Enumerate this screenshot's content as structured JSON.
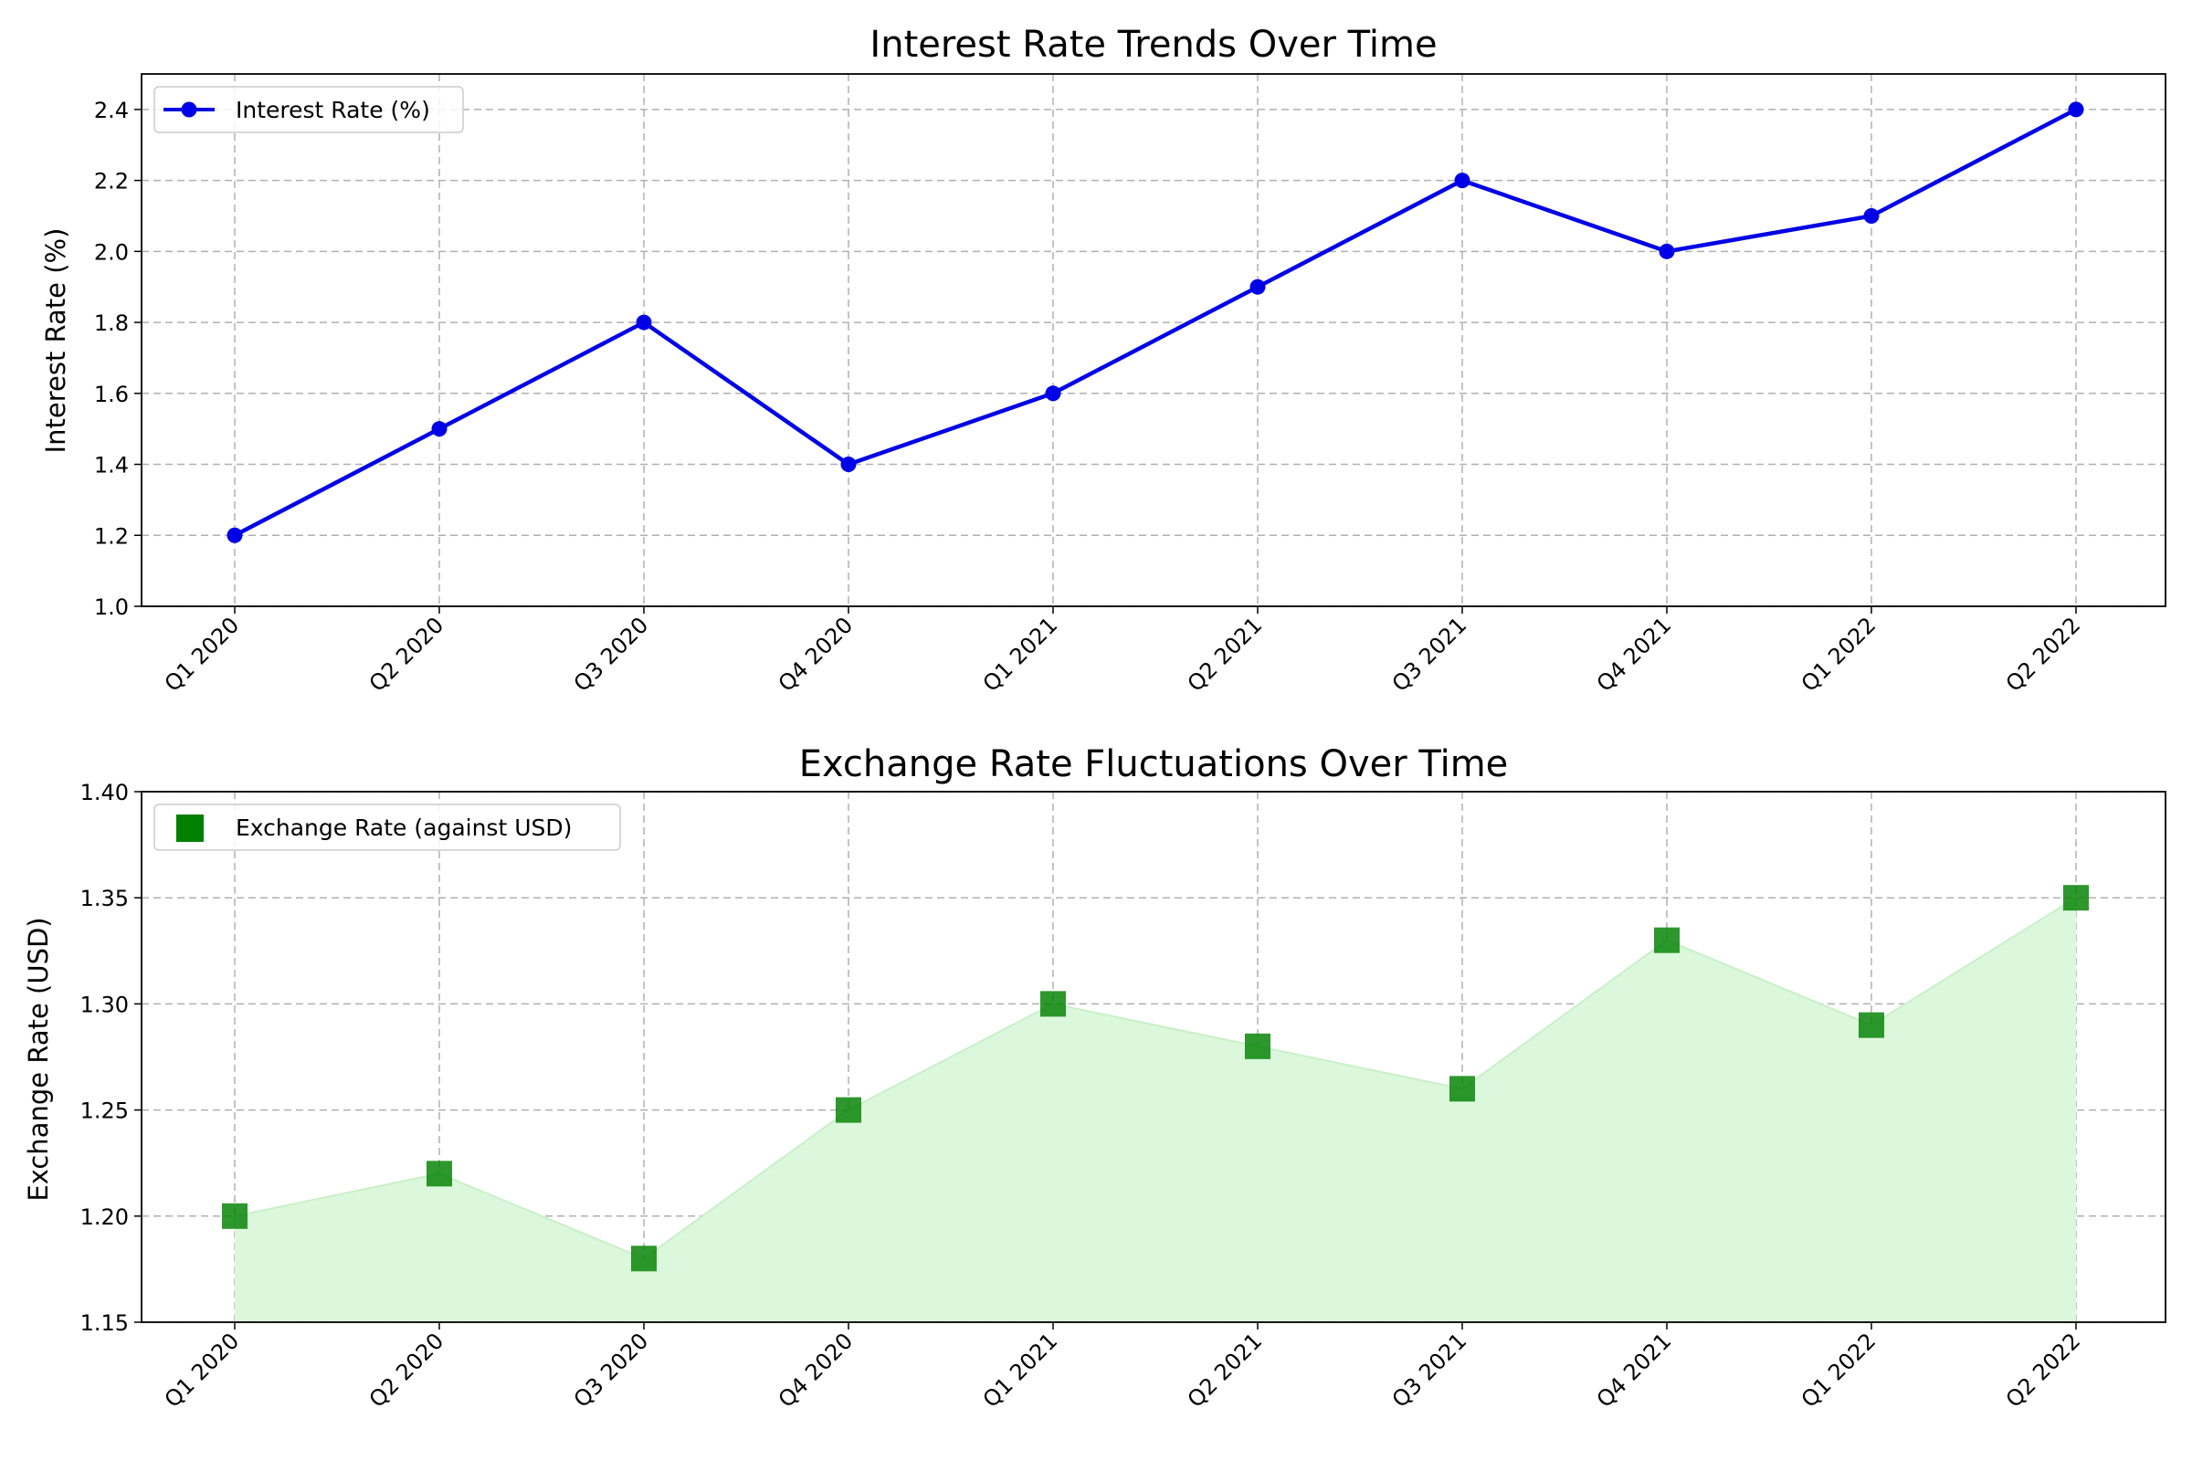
{
  "chart_data": [
    {
      "type": "line",
      "title": "Interest Rate Trends Over Time",
      "xlabel": "",
      "ylabel": "Interest Rate (%)",
      "categories": [
        "Q1 2020",
        "Q2 2020",
        "Q3 2020",
        "Q4 2020",
        "Q1 2021",
        "Q2 2021",
        "Q3 2021",
        "Q4 2021",
        "Q1 2022",
        "Q2 2022"
      ],
      "series": [
        {
          "name": "Interest Rate (%)",
          "values": [
            1.2,
            1.5,
            1.8,
            1.4,
            1.6,
            1.9,
            2.2,
            2.0,
            2.1,
            2.4
          ],
          "color": "#0000e6",
          "marker": "circle"
        }
      ],
      "ylim": [
        1.0,
        2.5
      ],
      "yticks": [
        "1.0",
        "1.2",
        "1.4",
        "1.6",
        "1.8",
        "2.0",
        "2.2",
        "2.4"
      ],
      "grid": true,
      "legend": "upper-left"
    },
    {
      "type": "area",
      "title": "Exchange Rate Fluctuations Over Time",
      "xlabel": "",
      "ylabel": "Exchange Rate (USD)",
      "categories": [
        "Q1 2020",
        "Q2 2020",
        "Q3 2020",
        "Q4 2020",
        "Q1 2021",
        "Q2 2021",
        "Q3 2021",
        "Q4 2021",
        "Q1 2022",
        "Q2 2022"
      ],
      "series": [
        {
          "name": "Exchange Rate (against USD)",
          "values": [
            1.2,
            1.22,
            1.18,
            1.25,
            1.3,
            1.28,
            1.26,
            1.33,
            1.29,
            1.35
          ],
          "color": "#008000",
          "fill_color": "#dcf8dc",
          "marker": "square"
        }
      ],
      "ylim": [
        1.15,
        1.4
      ],
      "yticks": [
        "1.15",
        "1.20",
        "1.25",
        "1.30",
        "1.35",
        "1.40"
      ],
      "grid": true,
      "legend": "upper-left"
    }
  ]
}
